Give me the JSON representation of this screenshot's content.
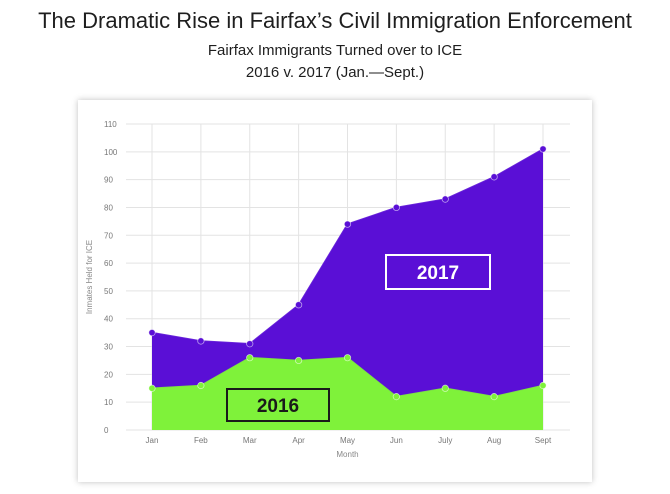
{
  "title": "The Dramatic Rise in Fairfax’s Civil Immigration Enforcement",
  "subtitle": "Fairfax Immigrants Turned over to ICE",
  "subtitle2": "2016 v. 2017  (Jan.—Sept.)",
  "chart_data": {
    "type": "area",
    "categories": [
      "Jan",
      "Feb",
      "Mar",
      "Apr",
      "May",
      "Jun",
      "July",
      "Aug",
      "Sept"
    ],
    "series": [
      {
        "name": "2017",
        "values": [
          35,
          32,
          31,
          45,
          74,
          80,
          83,
          91,
          101
        ],
        "color": "#5a0fd6"
      },
      {
        "name": "2016",
        "values": [
          15,
          16,
          26,
          25,
          26,
          12,
          15,
          12,
          16
        ],
        "color": "#7ff23a"
      }
    ],
    "xlabel": "Month",
    "ylabel": "Inmates Held for ICE",
    "ylim": [
      0,
      110
    ],
    "yticks": [
      0,
      10,
      20,
      30,
      40,
      50,
      60,
      70,
      80,
      90,
      100,
      110
    ],
    "grid": true,
    "series_labels_boxed": true
  }
}
